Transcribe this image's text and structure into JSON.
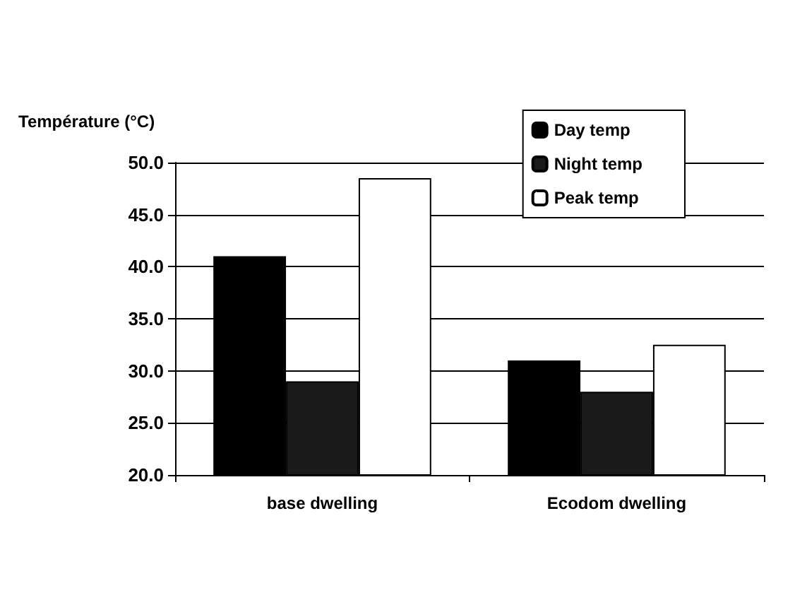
{
  "chart_data": {
    "type": "bar",
    "ylabel": "Température (°C)",
    "categories": [
      "base dwelling",
      "Ecodom dwelling"
    ],
    "series": [
      {
        "name": "Day temp",
        "color": "#000000",
        "values": [
          41,
          31
        ]
      },
      {
        "name": "Night temp",
        "color": "#1a1a1a",
        "values": [
          29,
          28
        ]
      },
      {
        "name": "Peak temp",
        "color": "#ffffff",
        "values": [
          48.5,
          32.5
        ]
      }
    ],
    "ylim": [
      20,
      50
    ],
    "yticks": [
      {
        "value": 20,
        "label": "20.0"
      },
      {
        "value": 25,
        "label": "25.0"
      },
      {
        "value": 30,
        "label": "30.0"
      },
      {
        "value": 35,
        "label": "35.0"
      },
      {
        "value": 40,
        "label": "40.0"
      },
      {
        "value": 45,
        "label": "45.0"
      },
      {
        "value": 50,
        "label": "50.0"
      }
    ],
    "grid": "y",
    "legend": "top right"
  }
}
